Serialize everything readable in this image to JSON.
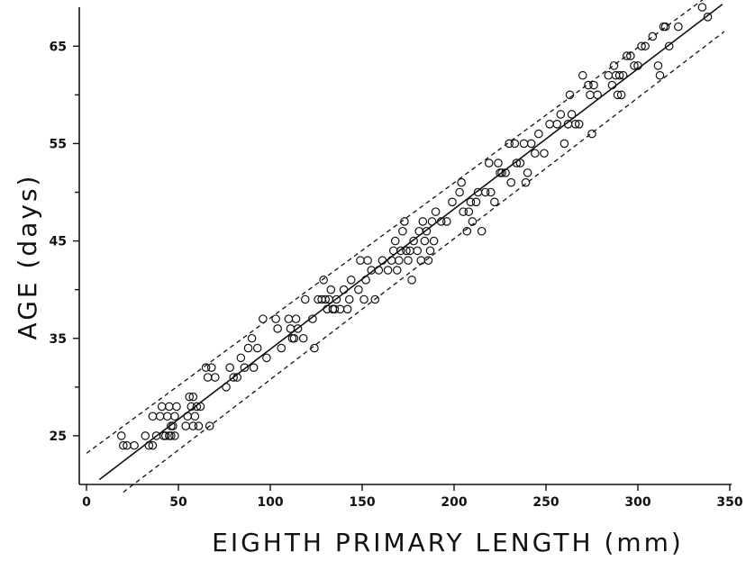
{
  "chart_data": {
    "type": "scatter",
    "xlabel": "EIGHTH PRIMARY LENGTH (mm)",
    "ylabel": "AGE (days)",
    "xlim": [
      0,
      350
    ],
    "ylim": [
      20,
      69
    ],
    "x_ticks": [
      0,
      50,
      100,
      150,
      200,
      250,
      300,
      350
    ],
    "y_ticks_labeled": [
      25,
      35,
      45,
      55,
      65
    ],
    "y_ticks_minor": [
      30,
      40,
      50,
      60
    ],
    "regression_line": {
      "x": [
        7,
        346
      ],
      "y": [
        20.5,
        69.3
      ]
    },
    "upper_band": {
      "x": [
        0,
        337
      ],
      "y": [
        23.2,
        70.0
      ]
    },
    "lower_band": {
      "x": [
        20,
        347
      ],
      "y": [
        19.2,
        66.5
      ]
    },
    "series": [
      {
        "points": [
          [
            19,
            25
          ],
          [
            20,
            24
          ],
          [
            22,
            24
          ],
          [
            26,
            24
          ],
          [
            32,
            25
          ],
          [
            34,
            24
          ],
          [
            36,
            27
          ],
          [
            36,
            24
          ],
          [
            38,
            25
          ],
          [
            40,
            27
          ],
          [
            41,
            28
          ],
          [
            42,
            25
          ],
          [
            43,
            25
          ],
          [
            44,
            27
          ],
          [
            45,
            28
          ],
          [
            45,
            25
          ],
          [
            46,
            25
          ],
          [
            47,
            26
          ],
          [
            48,
            27
          ],
          [
            48,
            25
          ],
          [
            49,
            28
          ],
          [
            46,
            26
          ],
          [
            54,
            26
          ],
          [
            55,
            27
          ],
          [
            56,
            29
          ],
          [
            57,
            28
          ],
          [
            58,
            29
          ],
          [
            58,
            26
          ],
          [
            59,
            27
          ],
          [
            60,
            28
          ],
          [
            61,
            26
          ],
          [
            62,
            28
          ],
          [
            65,
            32
          ],
          [
            66,
            31
          ],
          [
            67,
            26
          ],
          [
            68,
            32
          ],
          [
            70,
            31
          ],
          [
            76,
            30
          ],
          [
            78,
            32
          ],
          [
            80,
            31
          ],
          [
            82,
            31
          ],
          [
            84,
            33
          ],
          [
            86,
            32
          ],
          [
            88,
            34
          ],
          [
            90,
            35
          ],
          [
            91,
            32
          ],
          [
            93,
            34
          ],
          [
            96,
            37
          ],
          [
            98,
            33
          ],
          [
            103,
            37
          ],
          [
            104,
            36
          ],
          [
            106,
            34
          ],
          [
            110,
            37
          ],
          [
            111,
            36
          ],
          [
            112,
            35
          ],
          [
            113,
            35
          ],
          [
            114,
            37
          ],
          [
            115,
            36
          ],
          [
            118,
            35
          ],
          [
            119,
            39
          ],
          [
            123,
            37
          ],
          [
            124,
            34
          ],
          [
            126,
            39
          ],
          [
            128,
            39
          ],
          [
            129,
            41
          ],
          [
            130,
            39
          ],
          [
            131,
            38
          ],
          [
            132,
            39
          ],
          [
            133,
            40
          ],
          [
            134,
            38
          ],
          [
            135,
            38
          ],
          [
            136,
            39
          ],
          [
            138,
            38
          ],
          [
            140,
            40
          ],
          [
            142,
            38
          ],
          [
            143,
            39
          ],
          [
            144,
            41
          ],
          [
            148,
            40
          ],
          [
            149,
            43
          ],
          [
            151,
            39
          ],
          [
            152,
            41
          ],
          [
            153,
            43
          ],
          [
            155,
            42
          ],
          [
            157,
            39
          ],
          [
            159,
            42
          ],
          [
            161,
            43
          ],
          [
            164,
            42
          ],
          [
            166,
            43
          ],
          [
            167,
            44
          ],
          [
            168,
            45
          ],
          [
            169,
            42
          ],
          [
            170,
            43
          ],
          [
            171,
            44
          ],
          [
            172,
            46
          ],
          [
            173,
            47
          ],
          [
            174,
            44
          ],
          [
            175,
            43
          ],
          [
            176,
            44
          ],
          [
            177,
            41
          ],
          [
            178,
            45
          ],
          [
            180,
            44
          ],
          [
            181,
            46
          ],
          [
            182,
            43
          ],
          [
            183,
            47
          ],
          [
            184,
            45
          ],
          [
            185,
            46
          ],
          [
            186,
            43
          ],
          [
            187,
            44
          ],
          [
            188,
            47
          ],
          [
            189,
            45
          ],
          [
            190,
            48
          ],
          [
            193,
            47
          ],
          [
            196,
            47
          ],
          [
            199,
            49
          ],
          [
            203,
            50
          ],
          [
            204,
            51
          ],
          [
            205,
            48
          ],
          [
            207,
            46
          ],
          [
            208,
            48
          ],
          [
            209,
            49
          ],
          [
            210,
            47
          ],
          [
            212,
            49
          ],
          [
            213,
            50
          ],
          [
            215,
            46
          ],
          [
            217,
            50
          ],
          [
            219,
            53
          ],
          [
            220,
            50
          ],
          [
            222,
            49
          ],
          [
            224,
            53
          ],
          [
            225,
            52
          ],
          [
            226,
            52
          ],
          [
            228,
            52
          ],
          [
            230,
            55
          ],
          [
            231,
            51
          ],
          [
            233,
            55
          ],
          [
            234,
            53
          ],
          [
            236,
            53
          ],
          [
            238,
            55
          ],
          [
            239,
            51
          ],
          [
            240,
            52
          ],
          [
            242,
            55
          ],
          [
            244,
            54
          ],
          [
            246,
            56
          ],
          [
            249,
            54
          ],
          [
            252,
            57
          ],
          [
            256,
            57
          ],
          [
            258,
            58
          ],
          [
            260,
            55
          ],
          [
            262,
            57
          ],
          [
            263,
            60
          ],
          [
            264,
            58
          ],
          [
            266,
            57
          ],
          [
            268,
            57
          ],
          [
            270,
            62
          ],
          [
            273,
            61
          ],
          [
            274,
            60
          ],
          [
            275,
            56
          ],
          [
            276,
            61
          ],
          [
            278,
            60
          ],
          [
            284,
            62
          ],
          [
            286,
            61
          ],
          [
            287,
            63
          ],
          [
            288,
            62
          ],
          [
            289,
            60
          ],
          [
            290,
            62
          ],
          [
            291,
            60
          ],
          [
            292,
            62
          ],
          [
            294,
            64
          ],
          [
            296,
            64
          ],
          [
            298,
            63
          ],
          [
            300,
            63
          ],
          [
            302,
            65
          ],
          [
            304,
            65
          ],
          [
            308,
            66
          ],
          [
            311,
            63
          ],
          [
            312,
            62
          ],
          [
            314,
            67
          ],
          [
            315,
            67
          ],
          [
            317,
            65
          ],
          [
            322,
            67
          ],
          [
            335,
            69
          ],
          [
            338,
            68
          ]
        ]
      }
    ]
  }
}
